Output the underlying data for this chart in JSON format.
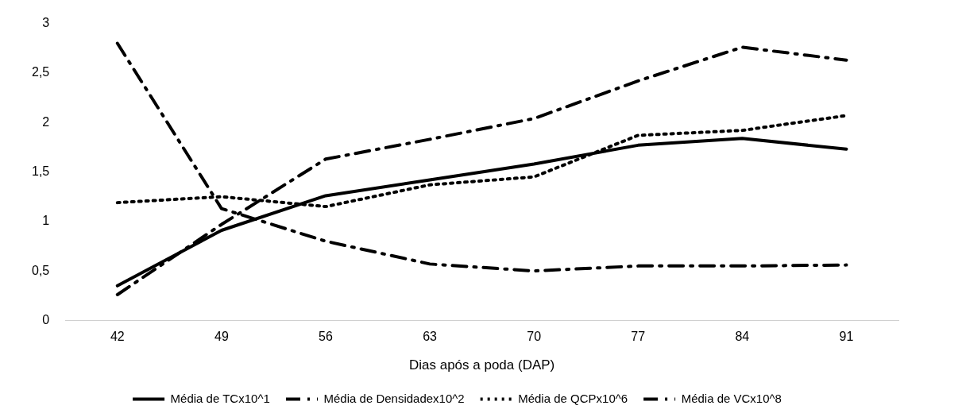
{
  "chart_data": {
    "type": "line",
    "xlabel": "Dias após a poda (DAP)",
    "categories": [
      "42",
      "49",
      "56",
      "63",
      "70",
      "77",
      "84",
      "91"
    ],
    "series": [
      {
        "name": "Média de TCx10^1",
        "color": "#000000",
        "line_style": "solid",
        "values": [
          0.35,
          0.91,
          1.26,
          1.42,
          1.58,
          1.77,
          1.84,
          1.73
        ]
      },
      {
        "name": "Média de Densidadex10^2",
        "color": "#000000",
        "line_style": "dashed",
        "values": [
          2.8,
          1.13,
          0.8,
          0.57,
          0.5,
          0.55,
          0.55,
          0.56
        ]
      },
      {
        "name": "Média de QCPx10^6",
        "color": "#000000",
        "line_style": "dotted",
        "values": [
          1.19,
          1.25,
          1.15,
          1.37,
          1.45,
          1.87,
          1.92,
          2.07
        ]
      },
      {
        "name": "Média de VCx10^8",
        "color": "#000000",
        "line_style": "dashed",
        "values": [
          0.26,
          0.97,
          1.63,
          1.83,
          2.04,
          2.42,
          2.76,
          2.63
        ]
      }
    ],
    "ylim": [
      0,
      3
    ],
    "yticks": [
      0,
      {
        "value": 0.5,
        "label": "0,5"
      },
      1,
      {
        "value": 1.5,
        "label": "1,5"
      },
      2,
      {
        "value": 2.5,
        "label": "2,5"
      },
      3
    ],
    "grid": false,
    "legend": "bottom",
    "marker": "none"
  }
}
